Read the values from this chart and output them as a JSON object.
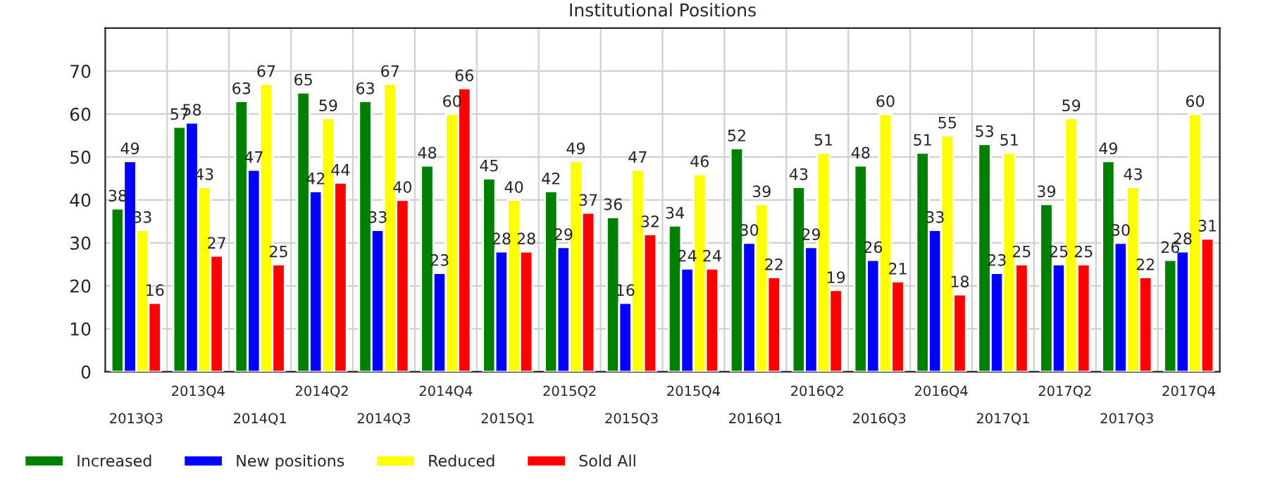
{
  "chart_data": {
    "type": "bar",
    "title": "Institutional Positions",
    "categories": [
      "2013Q3",
      "2013Q4",
      "2014Q1",
      "2014Q2",
      "2014Q3",
      "2014Q4",
      "2015Q1",
      "2015Q2",
      "2015Q3",
      "2015Q4",
      "2016Q1",
      "2016Q2",
      "2016Q3",
      "2016Q4",
      "2017Q1",
      "2017Q2",
      "2017Q3",
      "2017Q4"
    ],
    "series": [
      {
        "name": "Increased",
        "color": "#008000",
        "values": [
          38,
          57,
          63,
          65,
          63,
          48,
          45,
          42,
          36,
          34,
          52,
          43,
          48,
          51,
          53,
          39,
          49,
          26
        ]
      },
      {
        "name": "New positions",
        "color": "#0000ff",
        "values": [
          49,
          58,
          47,
          42,
          33,
          23,
          28,
          29,
          16,
          24,
          30,
          29,
          26,
          33,
          23,
          25,
          30,
          28
        ]
      },
      {
        "name": "Reduced",
        "color": "#ffff00",
        "values": [
          33,
          43,
          67,
          59,
          67,
          60,
          40,
          49,
          47,
          46,
          39,
          51,
          60,
          55,
          51,
          59,
          43,
          60
        ]
      },
      {
        "name": "Sold All",
        "color": "#ff0000",
        "values": [
          16,
          27,
          25,
          44,
          40,
          66,
          28,
          37,
          32,
          24,
          22,
          19,
          21,
          18,
          25,
          25,
          22,
          31
        ]
      }
    ],
    "ylim": [
      0,
      80
    ],
    "yticks": [
      0,
      10,
      20,
      30,
      40,
      50,
      60,
      70
    ],
    "grid": true,
    "legend": "bottom left",
    "data_labels": true
  }
}
